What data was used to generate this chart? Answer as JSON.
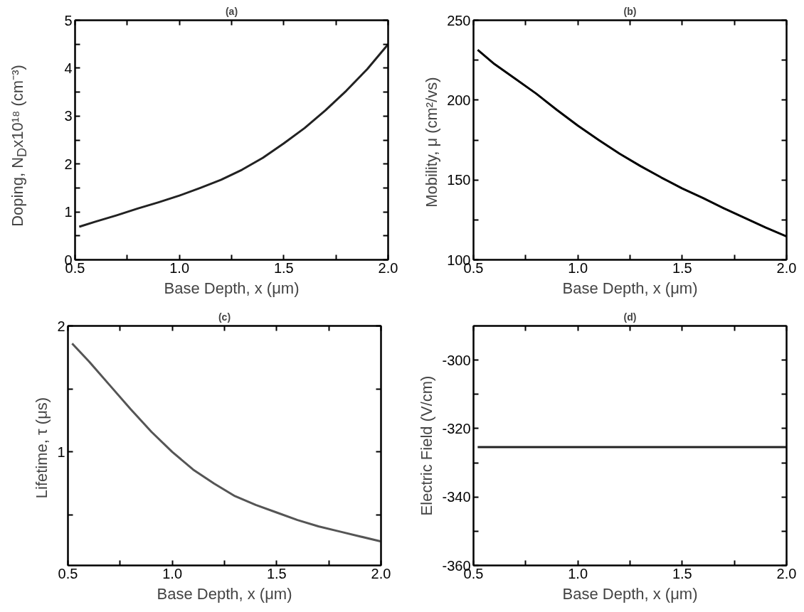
{
  "chart_data": [
    {
      "type": "line",
      "title": "(a)",
      "xlabel": "Base Depth, x (μm)",
      "ylabel": "Doping, N$_{D}$x10¹⁸ (cm⁻³)",
      "color": "#222222",
      "x": [
        0.52,
        0.6,
        0.7,
        0.8,
        0.9,
        1.0,
        1.1,
        1.2,
        1.3,
        1.4,
        1.5,
        1.6,
        1.7,
        1.8,
        1.9,
        2.0
      ],
      "values": [
        0.69,
        0.8,
        0.93,
        1.07,
        1.2,
        1.34,
        1.5,
        1.67,
        1.88,
        2.13,
        2.43,
        2.75,
        3.12,
        3.53,
        3.98,
        4.5
      ],
      "xlim": [
        0.5,
        2.0
      ],
      "ylim": [
        0,
        5
      ],
      "xticks": [
        {
          "value": 0.5,
          "label": "0.5"
        },
        {
          "value": 0.75,
          "label": null
        },
        {
          "value": 1,
          "label": "1.0"
        },
        {
          "value": 1.25,
          "label": null
        },
        {
          "value": 1.5,
          "label": "1.5"
        },
        {
          "value": 1.75,
          "label": null
        },
        {
          "value": 2,
          "label": "2.0"
        }
      ],
      "yticks": [
        0,
        {
          "value": 0.5,
          "label": null
        },
        1,
        {
          "value": 1.5,
          "label": null
        },
        2,
        {
          "value": 2.5,
          "label": null
        },
        3,
        {
          "value": 3.5,
          "label": null
        },
        4,
        {
          "value": 4.5,
          "label": null
        },
        5
      ]
    },
    {
      "type": "line",
      "title": "(b)",
      "xlabel": "Base Depth, x (μm)",
      "ylabel": "Mobility, μ  (cm²/vs)",
      "color": "#000000",
      "x": [
        0.52,
        0.6,
        0.7,
        0.8,
        0.9,
        1.0,
        1.1,
        1.2,
        1.3,
        1.4,
        1.5,
        1.6,
        1.7,
        1.8,
        1.9,
        2.0
      ],
      "values": [
        231.5,
        222.6,
        213.4,
        204.1,
        193.8,
        184.0,
        175.0,
        166.4,
        158.7,
        151.5,
        144.7,
        138.7,
        132.2,
        126.2,
        120.2,
        114.6
      ],
      "xlim": [
        0.5,
        2.0
      ],
      "ylim": [
        100,
        250
      ],
      "xticks": [
        {
          "value": 0.5,
          "label": "0.5"
        },
        {
          "value": 0.75,
          "label": null
        },
        {
          "value": 1,
          "label": "1.0"
        },
        {
          "value": 1.25,
          "label": null
        },
        {
          "value": 1.5,
          "label": "1.5"
        },
        {
          "value": 1.75,
          "label": null
        },
        {
          "value": 2,
          "label": "2.0"
        }
      ],
      "yticks": [
        100,
        {
          "value": 125,
          "label": null
        },
        150,
        {
          "value": 175,
          "label": null
        },
        200,
        {
          "value": 225,
          "label": null
        },
        250
      ]
    },
    {
      "type": "line",
      "title": "(c)",
      "xlabel": "Base Depth, x (μm)",
      "ylabel": "Lifetime, τ  (μs)",
      "color": "#555555",
      "x": [
        0.52,
        0.6,
        0.7,
        0.8,
        0.9,
        1.0,
        1.1,
        1.2,
        1.3,
        1.4,
        1.5,
        1.6,
        1.7,
        1.8,
        1.9,
        2.0
      ],
      "values": [
        1.86,
        1.72,
        1.53,
        1.34,
        1.16,
        1.0,
        0.86,
        0.75,
        0.65,
        0.58,
        0.52,
        0.46,
        0.41,
        0.37,
        0.33,
        0.29
      ],
      "xlim": [
        0.5,
        2.0
      ],
      "ylim": [
        0.1,
        2
      ],
      "xticks": [
        {
          "value": 0.5,
          "label": "0.5"
        },
        {
          "value": 0.75,
          "label": null
        },
        {
          "value": 1,
          "label": "1.0"
        },
        {
          "value": 1.25,
          "label": null
        },
        {
          "value": 1.5,
          "label": "1.5"
        },
        {
          "value": 1.75,
          "label": null
        },
        {
          "value": 2,
          "label": "2.0"
        }
      ],
      "yticks": [
        {
          "value": 0.5,
          "label": null
        },
        1,
        {
          "value": 1.5,
          "label": null
        },
        2
      ]
    },
    {
      "type": "line",
      "title": "(d)",
      "xlabel": "Base Depth, x (μm)",
      "ylabel": "Electric Field (V/cm)",
      "color": "#222222",
      "x": [
        0.52,
        2.0
      ],
      "values": [
        -325.4,
        -325.4
      ],
      "xlim": [
        0.5,
        2.0
      ],
      "ylim": [
        -360,
        -290
      ],
      "xticks": [
        {
          "value": 0.5,
          "label": "0.5"
        },
        {
          "value": 0.75,
          "label": null
        },
        {
          "value": 1,
          "label": "1.0"
        },
        {
          "value": 1.25,
          "label": null
        },
        {
          "value": 1.5,
          "label": "1.5"
        },
        {
          "value": 1.75,
          "label": null
        },
        {
          "value": 2,
          "label": "2.0"
        }
      ],
      "yticks": [
        -360,
        {
          "value": -350,
          "label": null
        },
        -340,
        {
          "value": -330,
          "label": null
        },
        -320,
        {
          "value": -310,
          "label": null
        },
        -300
      ]
    }
  ]
}
